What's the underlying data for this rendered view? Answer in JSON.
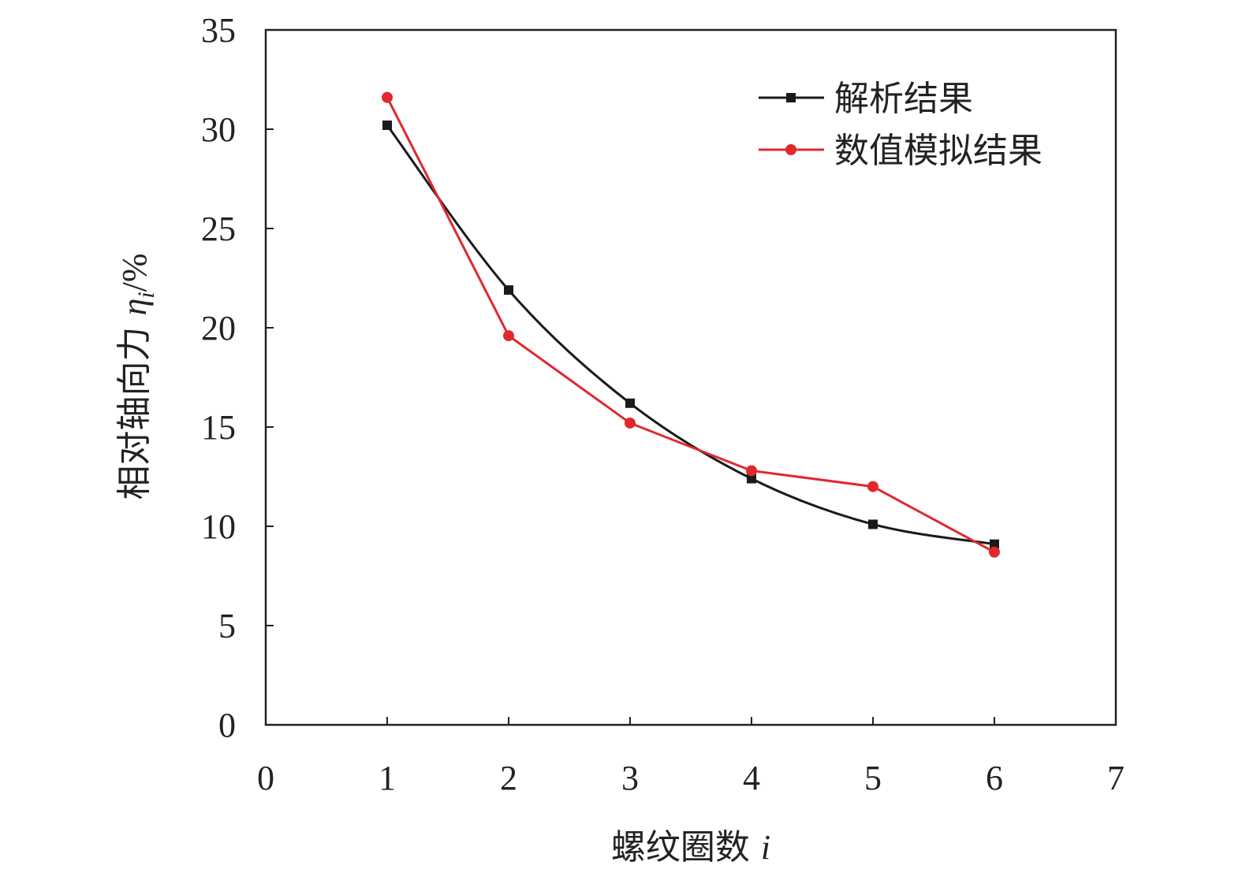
{
  "chart_data": {
    "type": "line",
    "x": [
      1,
      2,
      3,
      4,
      5,
      6
    ],
    "series": [
      {
        "name": "解析结果",
        "values": [
          30.2,
          21.9,
          16.2,
          12.4,
          10.1,
          9.1
        ],
        "color": "#1a1a1a",
        "marker": "square",
        "smooth": true
      },
      {
        "name": "数值模拟结果",
        "values": [
          31.6,
          19.6,
          15.2,
          12.8,
          12.0,
          8.7
        ],
        "color": "#e0282e",
        "marker": "circle",
        "smooth": false
      }
    ],
    "xlabel": "螺纹圈数",
    "xlabel_var": "i",
    "ylabel": "相对轴向力",
    "ylabel_var": "η",
    "ylabel_sub": "i",
    "ylabel_unit": "/%",
    "xlim": [
      0,
      7
    ],
    "ylim": [
      0,
      35
    ],
    "xticks": [
      "0",
      "1",
      "2",
      "3",
      "4",
      "5",
      "6",
      "7"
    ],
    "yticks": [
      "0",
      "5",
      "10",
      "15",
      "20",
      "25",
      "30",
      "35"
    ],
    "grid": false,
    "legend_position": "top-right"
  }
}
